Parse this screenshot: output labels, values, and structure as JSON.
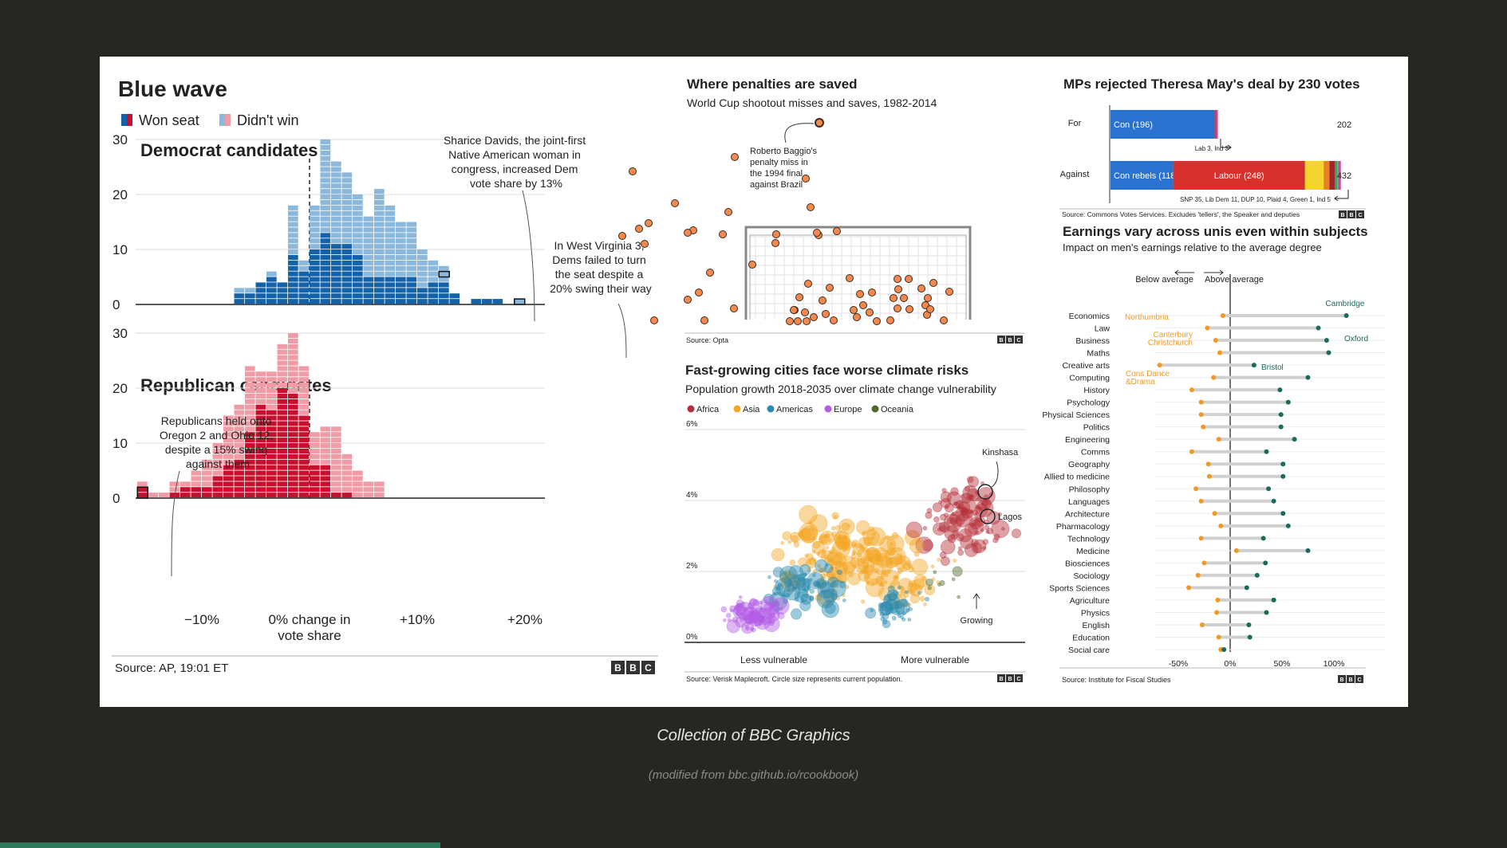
{
  "page": {
    "caption": "Collection of BBC Graphics",
    "subcaption": "(modified from bbc.github.io/rcookbook)",
    "colors": {
      "background": "#262622",
      "panel": "#ffffff",
      "accent_bar": "#2f7a5f"
    }
  },
  "bbc_logo": [
    "B",
    "B",
    "C"
  ],
  "chart_data": [
    {
      "id": "blue-wave",
      "type": "bar",
      "title": "Blue wave",
      "legend": [
        {
          "label": "Won seat",
          "color_dem": "#1462a8",
          "color_rep": "#c8102e"
        },
        {
          "label": "Didn't win",
          "color_dem": "#8cb8dc",
          "color_rep": "#f09ca6"
        }
      ],
      "x_ticks": [
        "−10%",
        "0% change in",
        "vote share",
        "+10%",
        "+20%"
      ],
      "y_ticks": [
        "0",
        "10",
        "20",
        "30"
      ],
      "ylim": [
        0,
        33
      ],
      "xlim": [
        -17,
        22
      ],
      "source": "Source: AP, 19:01 ET",
      "panels": [
        {
          "title": "Democrat candidates",
          "x": [
            -6.5,
            -5.5,
            -4.5,
            -3.5,
            -2.5,
            -1.5,
            -0.5,
            0.5,
            1.5,
            2.5,
            3.5,
            4.5,
            5.5,
            6.5,
            7.5,
            8.5,
            9.5,
            10.5,
            11.5,
            12.5,
            13.5,
            15.5,
            16.5,
            17.5,
            19.5
          ],
          "won": [
            2,
            2,
            4,
            5,
            4,
            9,
            6,
            10,
            13,
            11,
            11,
            9,
            5,
            5,
            5,
            5,
            5,
            3,
            4,
            4,
            2,
            1,
            1,
            1,
            0
          ],
          "didnt": [
            1,
            1,
            0,
            1,
            0,
            9,
            2,
            8,
            17,
            15,
            13,
            11,
            11,
            16,
            13,
            10,
            10,
            7,
            4,
            3,
            0,
            0,
            0,
            0,
            1
          ],
          "annotations": [
            "Sharice Davids, the joint-first Native American woman in congress, increased Dem vote share by 13%",
            "In West Virginia 3, Dems failed to turn the seat despite a 20% swing their way"
          ]
        },
        {
          "title": "Republican candidates",
          "x": [
            -15.5,
            -14.5,
            -13.5,
            -12.5,
            -11.5,
            -10.5,
            -9.5,
            -8.5,
            -7.5,
            -6.5,
            -5.5,
            -4.5,
            -3.5,
            -2.5,
            -1.5,
            -0.5,
            0.5,
            1.5,
            2.5,
            3.5,
            4.5,
            5.5,
            6.5
          ],
          "won": [
            2,
            0,
            0,
            1,
            2,
            2,
            2,
            4,
            6,
            7,
            12,
            17,
            16,
            20,
            19,
            15,
            6,
            6,
            1,
            1,
            0,
            0,
            0
          ],
          "didnt": [
            1,
            1,
            1,
            2,
            1,
            3,
            5,
            6,
            9,
            10,
            12,
            6,
            7,
            8,
            11,
            9,
            6,
            7,
            12,
            7,
            5,
            3,
            3
          ],
          "annotations": [
            "Republicans held onto Oregon 2 and Ohio 12, despite a 15% swing against them"
          ]
        }
      ]
    },
    {
      "id": "penalties",
      "type": "scatter",
      "title": "Where penalties are saved",
      "subtitle": "World Cup shootout misses and saves, 1982-2014",
      "annotation": "Roberto Baggio's penalty miss in the 1994 final against Brazil",
      "source": "Source: Opta",
      "colors": {
        "dot": "#f4884d",
        "dot_stroke": "#3a2a20",
        "goal": "#888888"
      }
    },
    {
      "id": "cities",
      "type": "scatter",
      "title": "Fast-growing cities face worse climate risks",
      "subtitle": "Population growth 2018-2035 over climate change vulnerability",
      "legend": [
        {
          "label": "Africa",
          "color": "#b5303a"
        },
        {
          "label": "Asia",
          "color": "#f5a623"
        },
        {
          "label": "Americas",
          "color": "#2a8ab0"
        },
        {
          "label": "Europe",
          "color": "#b35de6"
        },
        {
          "label": "Oceania",
          "color": "#4f6b2a"
        }
      ],
      "y_ticks": [
        "0%",
        "2%",
        "4%",
        "6%"
      ],
      "ylim": [
        0,
        6
      ],
      "x_labels": [
        "Less vulnerable",
        "More vulnerable"
      ],
      "annotations": [
        "Kinshasa",
        "Lagos",
        "Growing"
      ],
      "source": "Source: Verisk Maplecroft. Circle size represents current population."
    },
    {
      "id": "mps",
      "type": "bar",
      "title": "MPs rejected Theresa May's deal by 230 votes",
      "rows": [
        {
          "label": "For",
          "total": "202",
          "segments": [
            {
              "label": "Con (196)",
              "value": 196,
              "color": "#2a72d0"
            },
            {
              "label": "Lab",
              "value": 3,
              "color": "#d8302c"
            },
            {
              "label": "Ind",
              "value": 3,
              "color": "#cc44aa"
            }
          ],
          "note": "Lab 3, Ind 3"
        },
        {
          "label": "Against",
          "total": "432",
          "segments": [
            {
              "label": "Con rebels (118)",
              "value": 118,
              "color": "#2a72d0"
            },
            {
              "label": "Labour (248)",
              "value": 248,
              "color": "#d8302c"
            },
            {
              "label": "SNP",
              "value": 35,
              "color": "#f3d52e"
            },
            {
              "label": "Lib Dem",
              "value": 11,
              "color": "#e8802a"
            },
            {
              "label": "DUP",
              "value": 10,
              "color": "#a0242e"
            },
            {
              "label": "Plaid",
              "value": 4,
              "color": "#3a9a50"
            },
            {
              "label": "Green",
              "value": 1,
              "color": "#5bbf6a"
            },
            {
              "label": "Ind",
              "value": 5,
              "color": "#cc44aa"
            }
          ],
          "note": "SNP 35, Lib Dem 11, DUP 10, Plaid 4, Green 1, Ind 5"
        }
      ],
      "source": "Source: Commons Votes Services. Excludes 'tellers', the Speaker and deputies"
    },
    {
      "id": "earnings",
      "type": "scatter",
      "title": "Earnings vary across unis even within subjects",
      "subtitle": "Impact on men's earnings relative to the average degree",
      "header_labels": [
        "Below average",
        "Above average"
      ],
      "x_ticks": [
        "-50%",
        "0%",
        "50%",
        "100%"
      ],
      "xlim": [
        -60,
        150
      ],
      "colors": {
        "low": "#f19a1f",
        "high": "#1a6b5c",
        "range": "#d0d0d0"
      },
      "subjects": [
        "Economics",
        "Law",
        "Business",
        "Maths",
        "Creative arts",
        "Computing",
        "History",
        "Psychology",
        "Physical Sciences",
        "Politics",
        "Engineering",
        "Comms",
        "Geography",
        "Allied to medicine",
        "Philosophy",
        "Languages",
        "Architecture",
        "Pharmacology",
        "Technology",
        "Medicine",
        "Biosciences",
        "Sociology",
        "Sports Sciences",
        "Agriculture",
        "Physics",
        "English",
        "Education",
        "Social care"
      ],
      "low": [
        -7,
        -22,
        -14,
        -10,
        -68,
        -16,
        -37,
        -28,
        -28,
        -26,
        -11,
        -37,
        -21,
        -20,
        -33,
        -28,
        -15,
        -9,
        -28,
        6,
        -25,
        -31,
        -40,
        -12,
        -13,
        -27,
        -11,
        -9
      ],
      "high": [
        112,
        85,
        93,
        95,
        23,
        75,
        48,
        56,
        49,
        49,
        62,
        35,
        51,
        51,
        37,
        42,
        51,
        56,
        32,
        75,
        34,
        26,
        16,
        42,
        35,
        18,
        19,
        -6
      ],
      "point_labels": [
        {
          "text": "Cambridge",
          "subject": "Economics",
          "side": "high"
        },
        {
          "text": "Northumbria",
          "subject": "Economics",
          "side": "low"
        },
        {
          "text": "Oxford",
          "subject": "Business",
          "side": "high"
        },
        {
          "text": "Canterbury",
          "subject": "Business",
          "side": "low"
        },
        {
          "text": "Christchurch",
          "subject": "Business",
          "side": "low"
        },
        {
          "text": "Bristol",
          "subject": "Creative arts",
          "side": "high"
        },
        {
          "text": "Cons Dance",
          "subject": "Creative arts",
          "side": "low"
        },
        {
          "text": "&Drama",
          "subject": "Creative arts",
          "side": "low"
        }
      ],
      "source": "Source: Institute for Fiscal Studies"
    }
  ]
}
